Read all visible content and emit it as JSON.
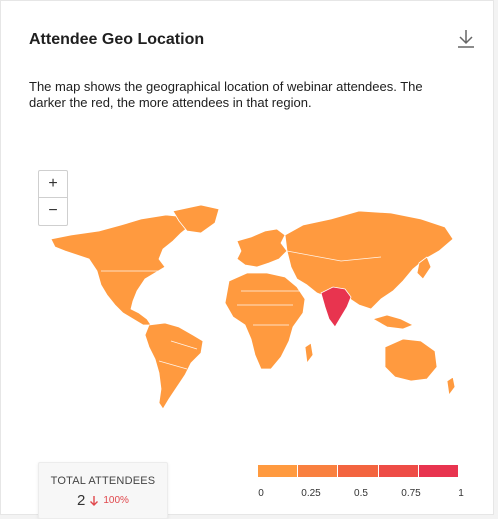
{
  "card": {
    "title": "Attendee Geo Location",
    "description": "The map shows the geographical location of webinar attendees. The darker the red, the more attendees in that region."
  },
  "zoom": {
    "in_label": "+",
    "out_label": "−"
  },
  "icons": {
    "download": "download-icon",
    "trend": "arrow-down-icon"
  },
  "map": {
    "base_color": "#ff9a3f",
    "highlight_color": "#e8344f",
    "highlight_region": "India"
  },
  "summary": {
    "label": "TOTAL ATTENDEES",
    "value": "2",
    "change": "100%",
    "change_color": "#e0474c"
  },
  "legend": {
    "colors": [
      "#ff9a3f",
      "#f9803f",
      "#f3643f",
      "#ee4c46",
      "#e8344f"
    ],
    "ticks": [
      "0",
      "0.25",
      "0.5",
      "0.75",
      "1"
    ]
  }
}
